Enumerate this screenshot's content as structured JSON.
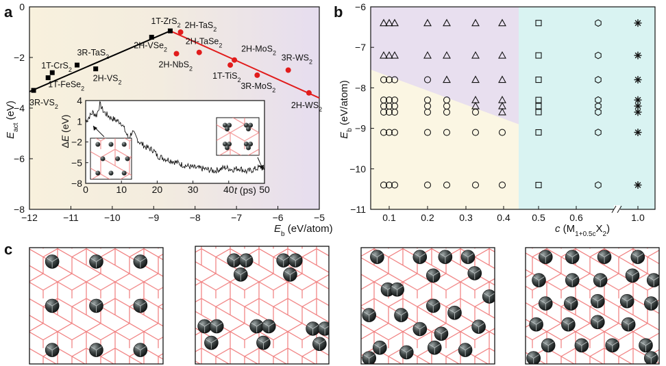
{
  "panels": {
    "a": "a",
    "b": "b",
    "c": "c"
  },
  "chart_data": [
    {
      "type": "scatter",
      "xlabel": "E_b (eV/atom)",
      "ylabel": "E_act (eV)",
      "xlim": [
        -12,
        -5
      ],
      "ylim": [
        -8,
        0
      ],
      "xticks": [
        "-12",
        "-11",
        "-10",
        "-9",
        "-8",
        "-7",
        "-6",
        "-5"
      ],
      "yticks": [
        "0",
        "-2",
        "-4",
        "-6",
        "-8"
      ],
      "background": [
        "#f8f1dd",
        "#e6ddef"
      ],
      "series": [
        {
          "color": "#000000",
          "marker": "square",
          "points": [
            {
              "label": "3R-VS2",
              "x": -11.9,
              "y": -3.3
            },
            {
              "label": "1T-FeSe2",
              "x": -11.55,
              "y": -2.8
            },
            {
              "label": "1T-CrS2",
              "x": -11.45,
              "y": -2.6
            },
            {
              "label": "3R-TaS2",
              "x": -10.85,
              "y": -2.3
            },
            {
              "label": "2H-VS2",
              "x": -10.4,
              "y": -2.45
            },
            {
              "label": "2H-VSe2",
              "x": -9.05,
              "y": -1.2
            },
            {
              "label": "1T-ZrS2",
              "x": -8.6,
              "y": -0.95
            }
          ],
          "fit": [
            [
              -12.0,
              -3.35
            ],
            [
              -8.6,
              -0.95
            ]
          ]
        },
        {
          "color": "#e11c1c",
          "marker": "circle",
          "points": [
            {
              "label": "2H-TaS2",
              "x": -8.35,
              "y": -1.0
            },
            {
              "label": "2H-NbS2",
              "x": -8.45,
              "y": -1.85
            },
            {
              "label": "2H-TaSe2",
              "x": -7.9,
              "y": -1.8
            },
            {
              "label": "2H-MoS2",
              "x": -7.05,
              "y": -2.1
            },
            {
              "label": "1T-TiS2",
              "x": -7.15,
              "y": -2.3
            },
            {
              "label": "3R-MoS2",
              "x": -6.5,
              "y": -2.7
            },
            {
              "label": "3R-WS2",
              "x": -5.75,
              "y": -2.5
            },
            {
              "label": "2H-WS2",
              "x": -5.25,
              "y": -3.4
            }
          ],
          "fit": [
            [
              -8.6,
              -0.95
            ],
            [
              -5.0,
              -3.6
            ]
          ]
        }
      ],
      "point_labels": [
        {
          "text": "3R-VS",
          "sub": "2"
        },
        {
          "text": "1T-FeSe",
          "sub": "2"
        },
        {
          "text": "1T-CrS",
          "sub": "2"
        },
        {
          "text": "3R-TaS",
          "sub": "2"
        },
        {
          "text": "2H-VS",
          "sub": "2"
        },
        {
          "text": "2H-VSe",
          "sub": "2"
        },
        {
          "text": "1T-ZrS",
          "sub": "2"
        },
        {
          "text": "2H-TaS",
          "sub": "2"
        },
        {
          "text": "2H-NbS",
          "sub": "2"
        },
        {
          "text": "2H-TaSe",
          "sub": "2"
        },
        {
          "text": "2H-MoS",
          "sub": "2"
        },
        {
          "text": "1T-TiS",
          "sub": "2"
        },
        {
          "text": "3R-MoS",
          "sub": "2"
        },
        {
          "text": "3R-WS",
          "sub": "2"
        },
        {
          "text": "2H-WS",
          "sub": "2"
        }
      ],
      "inset": {
        "type": "line",
        "xlabel": "t (ps)",
        "ylabel": "ΔE (eV)",
        "xlim": [
          0,
          50
        ],
        "ylim": [
          -8,
          4
        ],
        "xticks": [
          "0",
          "10",
          "20",
          "30",
          "40",
          "50"
        ],
        "yticks": [
          "4",
          "1",
          "-2",
          "-5",
          "-8"
        ],
        "trend": [
          [
            0,
            1.0
          ],
          [
            2,
            2.3
          ],
          [
            3,
            1.8
          ],
          [
            4,
            3.5
          ],
          [
            5,
            2.4
          ],
          [
            7,
            1.5
          ],
          [
            10,
            0.8
          ],
          [
            12,
            -1.5
          ],
          [
            13,
            -0.5
          ],
          [
            15,
            -2.0
          ],
          [
            17,
            -2.8
          ],
          [
            19,
            -3.2
          ],
          [
            20,
            -4.0
          ],
          [
            22,
            -4.4
          ],
          [
            24,
            -4.7
          ],
          [
            27,
            -5.3
          ],
          [
            30,
            -5.7
          ],
          [
            33,
            -5.9
          ],
          [
            36,
            -6.2
          ],
          [
            39,
            -5.7
          ],
          [
            41,
            -6.0
          ],
          [
            43,
            -5.8
          ],
          [
            45,
            -6.3
          ],
          [
            47,
            -6.0
          ],
          [
            49,
            -5.6
          ],
          [
            50,
            -6.2
          ]
        ]
      }
    },
    {
      "type": "scatter",
      "xlabel": "c (M1+0.5cX2)",
      "ylabel": "E_b (eV/atom)",
      "ylim": [
        -11,
        -6
      ],
      "xticks": [
        "0.1",
        "0.2",
        "0.3",
        "0.4",
        "0.5",
        "0.6",
        "1.0"
      ],
      "yticks": [
        "-6",
        "-7",
        "-8",
        "-9",
        "-10",
        "-11"
      ],
      "background": [
        "#e6ddef",
        "#fbf6e3",
        "#d9f3f2"
      ],
      "markers_by_eb": [
        {
          "eb": -6.4,
          "c": [
            0.1,
            0.2,
            0.25,
            0.33,
            0.4
          ],
          "marker": "triangle"
        },
        {
          "eb": -7.2,
          "c": [
            0.1,
            0.2,
            0.25,
            0.33,
            0.4
          ],
          "marker": "triangle"
        },
        {
          "eb": -7.8,
          "c": [
            0.1,
            0.2
          ],
          "marker": "circle"
        },
        {
          "eb": -7.8,
          "c": [
            0.25,
            0.33,
            0.4
          ],
          "marker": "triangle"
        },
        {
          "eb": -8.3,
          "c": [
            0.1,
            0.2,
            0.25
          ],
          "marker": "circle"
        },
        {
          "eb": -8.3,
          "c": [
            0.33,
            0.4
          ],
          "marker": "triangle"
        },
        {
          "eb": -8.45,
          "c": [
            0.1,
            0.2,
            0.25
          ],
          "marker": "circle"
        },
        {
          "eb": -8.45,
          "c": [
            0.33,
            0.4
          ],
          "marker": "triangle"
        },
        {
          "eb": -8.6,
          "c": [
            0.1,
            0.2,
            0.25,
            0.33
          ],
          "marker": "circle"
        },
        {
          "eb": -8.6,
          "c": [
            0.4
          ],
          "marker": "triangle"
        },
        {
          "eb": -9.1,
          "c": [
            0.1,
            0.2,
            0.25,
            0.33,
            0.4
          ],
          "marker": "circle"
        },
        {
          "eb": -10.4,
          "c": [
            0.1,
            0.2,
            0.25,
            0.33,
            0.4
          ],
          "marker": "circle"
        }
      ],
      "right_columns": [
        {
          "c": "0.5",
          "marker": "square",
          "eb": [
            -6.4,
            -7.2,
            -7.8,
            -8.3,
            -8.45,
            -8.6,
            -9.1,
            -10.4
          ]
        },
        {
          "c": "0.75",
          "marker": "hexagon",
          "eb": [
            -6.4,
            -7.2,
            -7.8,
            -8.3,
            -8.45,
            -8.6,
            -9.1,
            -10.4
          ]
        },
        {
          "c": "1.0",
          "marker": "asterisk",
          "eb": [
            -6.4,
            -7.2,
            -7.8,
            -8.3,
            -8.45,
            -8.6,
            -9.1,
            -10.4
          ]
        }
      ]
    }
  ],
  "lattices": [
    {
      "name": "structure-1",
      "atoms": [
        [
          0.17,
          0.12
        ],
        [
          0.5,
          0.12
        ],
        [
          0.83,
          0.12
        ],
        [
          0.17,
          0.5
        ],
        [
          0.5,
          0.5
        ],
        [
          0.83,
          0.5
        ],
        [
          0.17,
          0.88
        ],
        [
          0.5,
          0.88
        ],
        [
          0.83,
          0.88
        ]
      ]
    },
    {
      "name": "structure-2",
      "atoms": [
        [
          0.29,
          0.12
        ],
        [
          0.38,
          0.12
        ],
        [
          0.34,
          0.24
        ],
        [
          0.66,
          0.12
        ],
        [
          0.75,
          0.12
        ],
        [
          0.71,
          0.24
        ],
        [
          0.07,
          0.68
        ],
        [
          0.16,
          0.68
        ],
        [
          0.12,
          0.82
        ],
        [
          0.46,
          0.68
        ],
        [
          0.55,
          0.68
        ],
        [
          0.51,
          0.82
        ],
        [
          0.88,
          0.7
        ],
        [
          0.97,
          0.7
        ],
        [
          0.93,
          0.83
        ]
      ]
    },
    {
      "name": "structure-3",
      "atoms": [
        [
          0.12,
          0.08
        ],
        [
          0.44,
          0.08
        ],
        [
          0.63,
          0.08
        ],
        [
          0.8,
          0.08
        ],
        [
          0.2,
          0.36
        ],
        [
          0.27,
          0.36
        ],
        [
          0.54,
          0.24
        ],
        [
          0.85,
          0.22
        ],
        [
          0.96,
          0.42
        ],
        [
          0.06,
          0.58
        ],
        [
          0.3,
          0.58
        ],
        [
          0.54,
          0.5
        ],
        [
          0.7,
          0.56
        ],
        [
          0.44,
          0.7
        ],
        [
          0.6,
          0.74
        ],
        [
          0.88,
          0.68
        ],
        [
          0.14,
          0.86
        ],
        [
          0.34,
          0.9
        ],
        [
          0.55,
          0.86
        ],
        [
          0.78,
          0.88
        ],
        [
          0.06,
          0.95
        ]
      ]
    },
    {
      "name": "structure-4",
      "atoms": [
        [
          0.15,
          0.08
        ],
        [
          0.35,
          0.08
        ],
        [
          0.59,
          0.08
        ],
        [
          0.84,
          0.08
        ],
        [
          0.1,
          0.28
        ],
        [
          0.35,
          0.28
        ],
        [
          0.56,
          0.28
        ],
        [
          0.8,
          0.24
        ],
        [
          0.96,
          0.28
        ],
        [
          0.15,
          0.48
        ],
        [
          0.34,
          0.48
        ],
        [
          0.54,
          0.46
        ],
        [
          0.76,
          0.46
        ],
        [
          0.94,
          0.48
        ],
        [
          0.08,
          0.66
        ],
        [
          0.32,
          0.66
        ],
        [
          0.54,
          0.64
        ],
        [
          0.77,
          0.66
        ],
        [
          0.17,
          0.84
        ],
        [
          0.42,
          0.84
        ],
        [
          0.65,
          0.84
        ],
        [
          0.9,
          0.84
        ],
        [
          0.06,
          0.95
        ],
        [
          0.94,
          0.95
        ]
      ]
    }
  ]
}
